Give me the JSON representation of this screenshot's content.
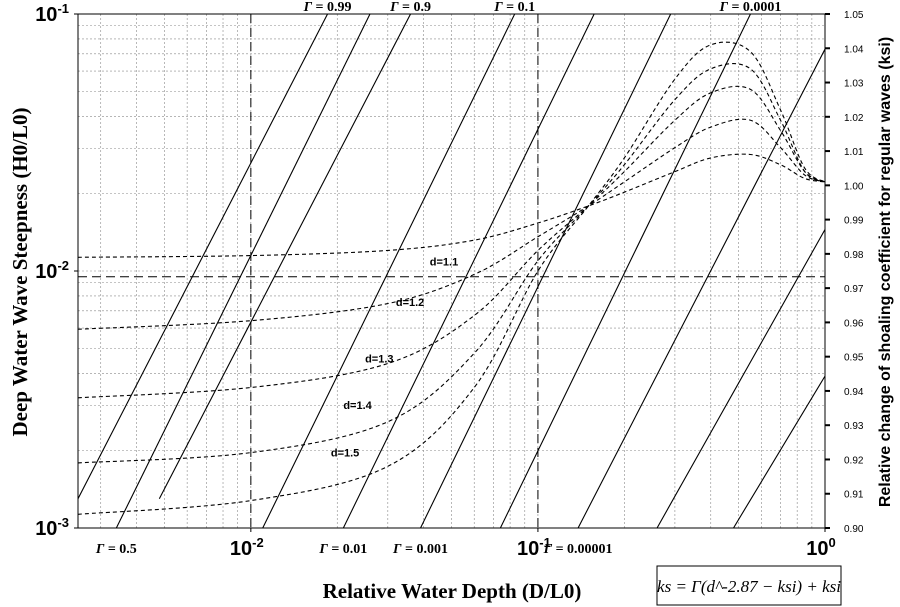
{
  "chart_data": {
    "type": "line",
    "xlabel": "Relative Water Depth (D/L0)",
    "ylabel": "Deep Water Wave Steepness (H0/L0)",
    "y2label": "Relative change of shoaling coefficient for regular waves (ksi)",
    "x_scale": "log",
    "y_scale": "log",
    "xlim": [
      0.0025,
      1.0
    ],
    "ylim": [
      0.001,
      0.1
    ],
    "y2lim": [
      0.9,
      1.05
    ],
    "grid": true,
    "x_major_ticks": [
      {
        "value": 0.01,
        "base": "10",
        "exp": "-2"
      },
      {
        "value": 0.1,
        "base": "10",
        "exp": "-1"
      },
      {
        "value": 1,
        "base": "10",
        "exp": "0"
      }
    ],
    "y_major_ticks": [
      {
        "value": 0.1,
        "base": "10",
        "exp": "-1"
      },
      {
        "value": 0.01,
        "base": "10",
        "exp": "-2"
      },
      {
        "value": 0.001,
        "base": "10",
        "exp": "-3"
      }
    ],
    "y2_ticks": [
      "0.90",
      "0.91",
      "0.92",
      "0.93",
      "0.94",
      "0.95",
      "0.96",
      "0.97",
      "0.98",
      "0.99",
      "1.00",
      "1.01",
      "1.02",
      "1.03",
      "1.04",
      "1.05"
    ],
    "gamma_lines": [
      {
        "label": "Γ = 0.99",
        "position": "top",
        "points": [
          [
            0.0025,
            0.0013
          ],
          [
            0.0185,
            0.1
          ]
        ]
      },
      {
        "label": "Γ = 0.9",
        "position": "top",
        "points": [
          [
            0.0048,
            0.0013
          ],
          [
            0.036,
            0.1
          ]
        ]
      },
      {
        "label": "Γ = 0.5",
        "position": "bottom",
        "points": [
          [
            0.0034,
            0.001
          ],
          [
            0.026,
            0.1
          ]
        ]
      },
      {
        "label": "Γ = 0.1",
        "position": "top",
        "points": [
          [
            0.011,
            0.001
          ],
          [
            0.083,
            0.1
          ]
        ]
      },
      {
        "label": "Γ = 0.01",
        "position": "bottom",
        "points": [
          [
            0.021,
            0.001
          ],
          [
            0.157,
            0.1
          ]
        ]
      },
      {
        "label": "Γ = 0.001",
        "position": "bottom",
        "points": [
          [
            0.039,
            0.001
          ],
          [
            0.29,
            0.1
          ]
        ]
      },
      {
        "label": "Γ = 0.00001",
        "position": "bottom",
        "points": [
          [
            0.138,
            0.001
          ],
          [
            1.0,
            0.073
          ]
        ]
      },
      {
        "label": "Γ = 0.0001",
        "position": "top",
        "points": [
          [
            0.074,
            0.001
          ],
          [
            0.55,
            0.1
          ]
        ]
      },
      {
        "label": "",
        "position": "none",
        "points": [
          [
            0.26,
            0.001
          ],
          [
            1.0,
            0.0145
          ]
        ]
      },
      {
        "label": "",
        "position": "none",
        "points": [
          [
            0.48,
            0.001
          ],
          [
            1.0,
            0.0039
          ]
        ]
      }
    ],
    "reference_lines": [
      {
        "type": "vertical",
        "x": 0.01
      },
      {
        "type": "vertical",
        "x": 0.1
      },
      {
        "type": "horizontal",
        "y": 0.0095
      }
    ],
    "series": [
      {
        "name": "d=1.1",
        "label_at": [
          0.042,
          0.0105
        ],
        "x": [
          0.0025,
          0.01,
          0.03,
          0.06,
          0.1,
          0.15,
          0.2,
          0.3,
          0.4,
          0.55,
          0.7,
          0.85,
          1.0
        ],
        "y2": [
          0.979,
          0.9795,
          0.981,
          0.984,
          0.989,
          0.994,
          0.998,
          1.004,
          1.008,
          1.009,
          1.006,
          1.002,
          1.001
        ]
      },
      {
        "name": "d=1.2",
        "label_at": [
          0.032,
          0.0073
        ],
        "x": [
          0.0025,
          0.01,
          0.03,
          0.06,
          0.1,
          0.15,
          0.2,
          0.3,
          0.4,
          0.55,
          0.7,
          0.85,
          1.0
        ],
        "y2": [
          0.958,
          0.9605,
          0.9655,
          0.974,
          0.985,
          0.994,
          1.001,
          1.011,
          1.017,
          1.019,
          1.011,
          1.003,
          1.001
        ]
      },
      {
        "name": "d=1.3",
        "label_at": [
          0.025,
          0.0044
        ],
        "x": [
          0.0025,
          0.01,
          0.03,
          0.06,
          0.1,
          0.15,
          0.2,
          0.3,
          0.4,
          0.55,
          0.7,
          0.85,
          1.0
        ],
        "y2": [
          0.938,
          0.941,
          0.948,
          0.962,
          0.981,
          0.994,
          1.004,
          1.019,
          1.027,
          1.028,
          1.016,
          1.004,
          1.001
        ]
      },
      {
        "name": "d=1.4",
        "label_at": [
          0.021,
          0.0029
        ],
        "x": [
          0.0025,
          0.01,
          0.03,
          0.06,
          0.1,
          0.15,
          0.2,
          0.3,
          0.4,
          0.55,
          0.7,
          0.85,
          1.0
        ],
        "y2": [
          0.919,
          0.922,
          0.931,
          0.951,
          0.978,
          0.994,
          1.006,
          1.025,
          1.034,
          1.034,
          1.019,
          1.004,
          1.001
        ]
      },
      {
        "name": "d=1.5",
        "label_at": [
          0.019,
          0.0019
        ],
        "x": [
          0.0025,
          0.01,
          0.03,
          0.06,
          0.1,
          0.15,
          0.2,
          0.3,
          0.4,
          0.55,
          0.7,
          0.85,
          1.0
        ],
        "y2": [
          0.904,
          0.908,
          0.918,
          0.941,
          0.975,
          0.994,
          1.008,
          1.031,
          1.041,
          1.039,
          1.022,
          1.005,
          1.001
        ]
      }
    ],
    "equation": "ks = Γ(d^-2.87 − ksi) + ksi"
  }
}
